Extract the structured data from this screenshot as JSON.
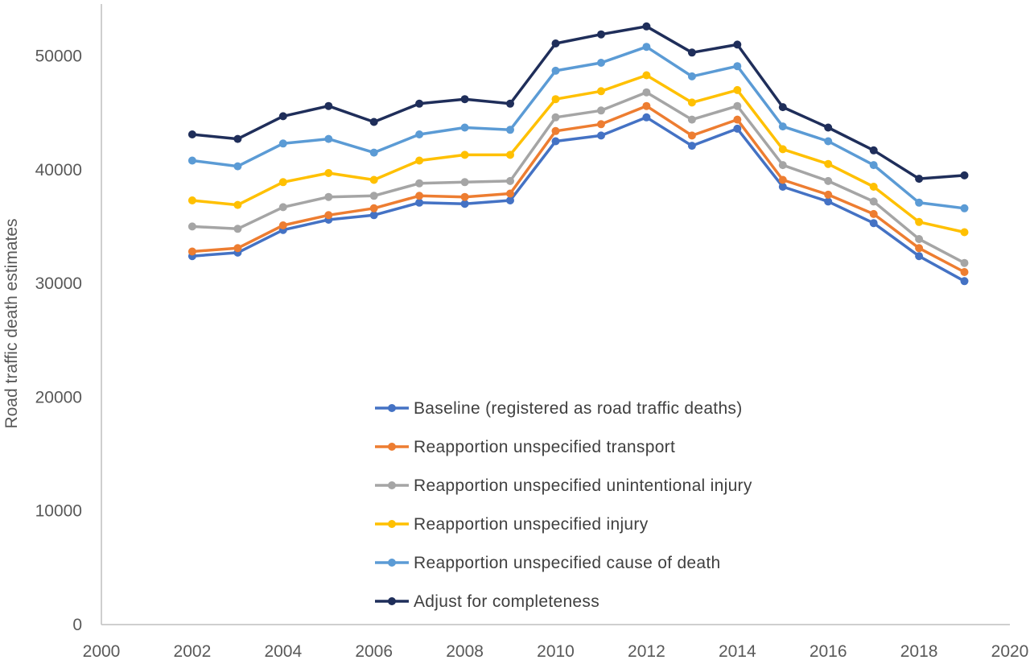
{
  "chart_data": {
    "type": "line",
    "title": "",
    "xlabel": "",
    "ylabel": "Road traffic death estimates",
    "xlim": [
      2000,
      2020
    ],
    "ylim": [
      0,
      55000
    ],
    "x_ticks": [
      2000,
      2002,
      2004,
      2006,
      2008,
      2010,
      2012,
      2014,
      2016,
      2018,
      2020
    ],
    "y_ticks": [
      0,
      10000,
      20000,
      30000,
      40000,
      50000
    ],
    "grid": false,
    "legend_position": "center-bottom inside plot",
    "x": [
      2002,
      2003,
      2004,
      2005,
      2006,
      2007,
      2008,
      2009,
      2010,
      2011,
      2012,
      2013,
      2014,
      2015,
      2016,
      2017,
      2018,
      2019
    ],
    "series": [
      {
        "name": "Baseline (registered as road traffic deaths)",
        "color": "#4472C4",
        "values": [
          32400,
          32700,
          34700,
          35600,
          36000,
          37100,
          37000,
          37300,
          42500,
          43000,
          44600,
          42100,
          43600,
          38500,
          37200,
          35300,
          32400,
          30200
        ]
      },
      {
        "name": "Reapportion unspecified transport",
        "color": "#ED7D31",
        "values": [
          32800,
          33100,
          35100,
          36000,
          36600,
          37700,
          37600,
          37900,
          43400,
          44000,
          45600,
          43000,
          44400,
          39100,
          37800,
          36100,
          33100,
          31000
        ]
      },
      {
        "name": "Reapportion unspecified unintentional injury",
        "color": "#A5A5A5",
        "values": [
          35000,
          34800,
          36700,
          37600,
          37700,
          38800,
          38900,
          39000,
          44600,
          45200,
          46800,
          44400,
          45600,
          40400,
          39000,
          37200,
          33900,
          31800
        ]
      },
      {
        "name": "Reapportion unspecified injury",
        "color": "#FFC000",
        "values": [
          37300,
          36900,
          38900,
          39700,
          39100,
          40800,
          41300,
          41300,
          46200,
          46900,
          48300,
          45900,
          47000,
          41800,
          40500,
          38500,
          35400,
          34500
        ]
      },
      {
        "name": "Reapportion unspecified cause of death",
        "color": "#5B9BD5",
        "values": [
          40800,
          40300,
          42300,
          42700,
          41500,
          43100,
          43700,
          43500,
          48700,
          49400,
          50800,
          48200,
          49100,
          43800,
          42500,
          40400,
          37100,
          36600
        ]
      },
      {
        "name": "Adjust for completeness",
        "color": "#1F2E5A",
        "values": [
          43100,
          42700,
          44700,
          45600,
          44200,
          45800,
          46200,
          45800,
          51100,
          51900,
          52600,
          50300,
          51000,
          45500,
          43700,
          41700,
          39200,
          39500
        ]
      }
    ]
  }
}
